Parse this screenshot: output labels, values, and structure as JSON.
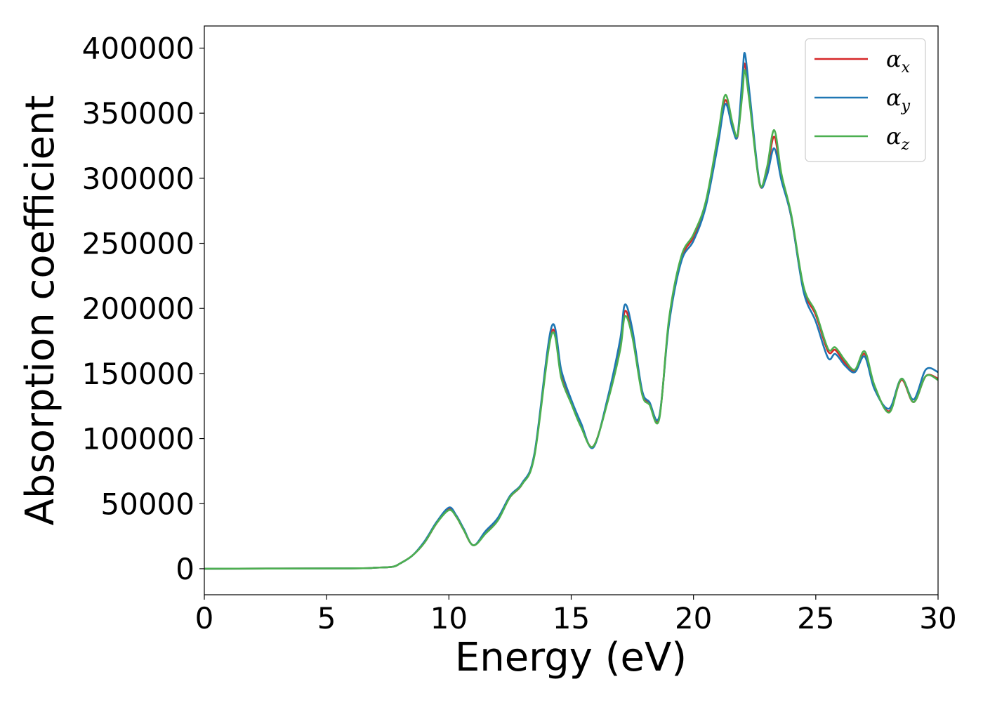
{
  "chart_data": {
    "type": "line",
    "title": "",
    "xlabel": "Energy (eV)",
    "ylabel": "Absorption coefficient",
    "xlim": [
      0,
      30
    ],
    "ylim": [
      -20000,
      417000
    ],
    "xticks": [
      0,
      5,
      10,
      15,
      20,
      25,
      30
    ],
    "yticks": [
      0,
      50000,
      100000,
      150000,
      200000,
      250000,
      300000,
      350000,
      400000
    ],
    "xtick_labels": [
      "0",
      "5",
      "10",
      "15",
      "20",
      "25",
      "30"
    ],
    "ytick_labels": [
      "0",
      "50000",
      "100000",
      "150000",
      "200000",
      "250000",
      "300000",
      "350000",
      "400000"
    ],
    "grid": false,
    "legend_position": "top-right",
    "series": [
      {
        "name": "α",
        "subscript": "x",
        "color": "#d62728",
        "x": [
          0,
          6,
          7,
          7.7,
          8.0,
          8.5,
          9.0,
          9.5,
          10.0,
          10.3,
          10.6,
          11.0,
          11.5,
          12.0,
          12.5,
          13.0,
          13.5,
          14.2,
          14.6,
          15.0,
          15.4,
          15.9,
          16.5,
          17.0,
          17.2,
          17.5,
          17.9,
          18.2,
          18.6,
          19.0,
          19.5,
          20.0,
          20.5,
          21.0,
          21.3,
          21.6,
          21.8,
          22.0,
          22.1,
          22.3,
          22.7,
          23.0,
          23.3,
          23.6,
          24.0,
          24.5,
          25.0,
          25.5,
          25.8,
          26.2,
          26.6,
          27.0,
          27.4,
          28.0,
          28.5,
          29.0,
          29.5,
          30.0
        ],
        "y": [
          0,
          300,
          800,
          1500,
          4000,
          10000,
          20000,
          35000,
          46000,
          40000,
          30000,
          18000,
          28000,
          38000,
          55000,
          65000,
          88000,
          182000,
          148000,
          128000,
          110000,
          94000,
          130000,
          170000,
          198000,
          180000,
          135000,
          127000,
          116000,
          190000,
          238000,
          255000,
          280000,
          330000,
          360000,
          340000,
          332000,
          370000,
          388000,
          360000,
          296000,
          305000,
          332000,
          300000,
          270000,
          215000,
          195000,
          167000,
          168000,
          158000,
          152000,
          165000,
          140000,
          121000,
          145000,
          128000,
          148000,
          146000
        ]
      },
      {
        "name": "α",
        "subscript": "y",
        "color": "#1f77b4",
        "x": [
          0,
          6,
          7,
          7.7,
          8.0,
          8.5,
          9.0,
          9.5,
          10.0,
          10.3,
          10.6,
          11.0,
          11.5,
          12.0,
          12.5,
          13.0,
          13.5,
          14.2,
          14.6,
          15.0,
          15.4,
          15.9,
          16.5,
          17.0,
          17.2,
          17.5,
          17.9,
          18.2,
          18.6,
          19.0,
          19.5,
          20.0,
          20.5,
          21.0,
          21.3,
          21.6,
          21.8,
          22.0,
          22.1,
          22.3,
          22.7,
          23.0,
          23.3,
          23.6,
          24.0,
          24.5,
          25.0,
          25.5,
          25.8,
          26.2,
          26.6,
          27.0,
          27.4,
          28.0,
          28.5,
          29.0,
          29.5,
          30.0
        ],
        "y": [
          0,
          300,
          800,
          1500,
          4000,
          10000,
          21000,
          36000,
          47000,
          41000,
          31000,
          18000,
          29000,
          39000,
          56000,
          66000,
          89000,
          186000,
          152000,
          130000,
          112000,
          93000,
          132000,
          176000,
          203000,
          184000,
          137000,
          128000,
          117000,
          188000,
          236000,
          252000,
          278000,
          326000,
          357000,
          338000,
          333000,
          378000,
          396000,
          364000,
          297000,
          302000,
          323000,
          298000,
          270000,
          213000,
          190000,
          162000,
          165000,
          156000,
          151000,
          163000,
          138000,
          123000,
          146000,
          130000,
          153000,
          151000
        ]
      },
      {
        "name": "α",
        "subscript": "z",
        "color": "#4caf50",
        "x": [
          0,
          6,
          7,
          7.7,
          8.0,
          8.5,
          9.0,
          9.5,
          10.0,
          10.3,
          10.6,
          11.0,
          11.5,
          12.0,
          12.5,
          13.0,
          13.5,
          14.2,
          14.6,
          15.0,
          15.4,
          15.9,
          16.5,
          17.0,
          17.2,
          17.5,
          17.9,
          18.2,
          18.6,
          19.0,
          19.5,
          20.0,
          20.5,
          21.0,
          21.3,
          21.6,
          21.8,
          22.0,
          22.1,
          22.3,
          22.7,
          23.0,
          23.3,
          23.6,
          24.0,
          24.5,
          25.0,
          25.5,
          25.8,
          26.2,
          26.6,
          27.0,
          27.4,
          28.0,
          28.5,
          29.0,
          29.5,
          30.0
        ],
        "y": [
          0,
          300,
          800,
          1500,
          4000,
          10000,
          20000,
          35000,
          45000,
          40000,
          30000,
          18000,
          27000,
          37000,
          55000,
          65000,
          87000,
          180000,
          146000,
          127000,
          109000,
          94000,
          129000,
          168000,
          194000,
          178000,
          134000,
          126000,
          115000,
          192000,
          240000,
          257000,
          282000,
          333000,
          364000,
          342000,
          333000,
          365000,
          383000,
          357000,
          296000,
          308000,
          337000,
          303000,
          272000,
          217000,
          197000,
          169000,
          170000,
          160000,
          153000,
          167000,
          141000,
          120000,
          146000,
          128000,
          148000,
          145000
        ]
      }
    ]
  }
}
